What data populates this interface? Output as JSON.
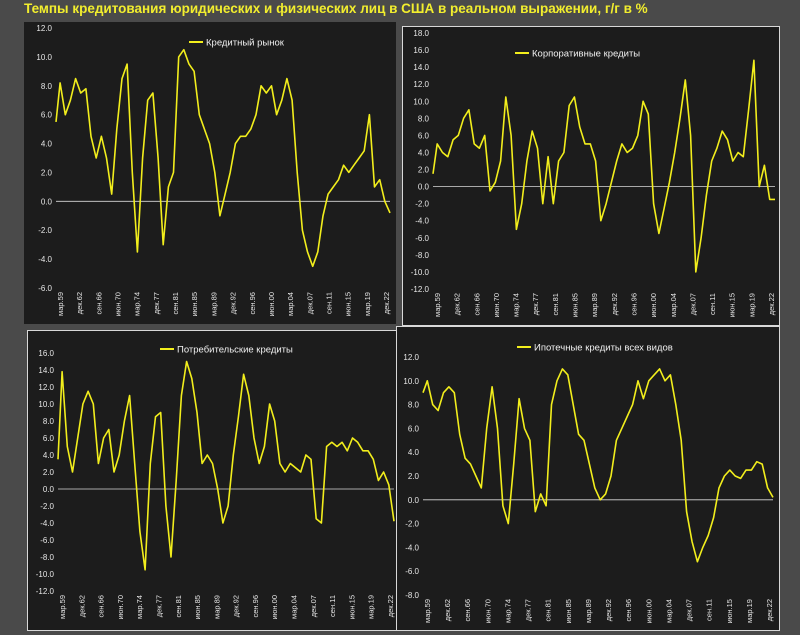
{
  "title": "Темпы кредитования юридических и физических лиц в США в реальном выражении, г/г в %",
  "colors": {
    "line": "#f2ee1c",
    "background": "#1c1c1c",
    "grid": "#555555",
    "text": "#e6e6e6"
  },
  "chart_data": [
    {
      "type": "line",
      "series": [
        {
          "name": "Кредитный рынок",
          "x": [
            1959.2,
            1960.0,
            1961.0,
            1962.0,
            1963.0,
            1964.0,
            1965.0,
            1966.0,
            1967.0,
            1968.0,
            1969.0,
            1970.0,
            1971.0,
            1972.0,
            1973.0,
            1974.0,
            1975.0,
            1976.0,
            1977.0,
            1978.0,
            1979.0,
            1980.0,
            1981.0,
            1982.0,
            1983.0,
            1984.0,
            1985.0,
            1986.0,
            1987.0,
            1988.0,
            1989.0,
            1990.0,
            1991.0,
            1992.0,
            1993.0,
            1994.0,
            1995.0,
            1996.0,
            1997.0,
            1998.0,
            1999.0,
            2000.0,
            2001.0,
            2002.0,
            2003.0,
            2004.0,
            2005.0,
            2006.0,
            2007.0,
            2008.0,
            2009.0,
            2010.0,
            2011.0,
            2012.0,
            2013.0,
            2014.0,
            2015.0,
            2016.0,
            2017.0,
            2018.0,
            2019.0,
            2020.0,
            2021.0,
            2022.0,
            2023.0,
            2024.0
          ],
          "values": [
            5.5,
            8.2,
            6.0,
            7.0,
            8.5,
            7.5,
            7.8,
            4.5,
            3.0,
            4.5,
            3.0,
            0.5,
            5.0,
            8.5,
            9.5,
            2.0,
            -3.5,
            3.0,
            7.0,
            7.5,
            3.0,
            -3.0,
            1.0,
            2.0,
            10.0,
            10.5,
            9.5,
            9.0,
            6.0,
            5.0,
            4.0,
            2.0,
            -1.0,
            0.5,
            2.0,
            4.0,
            4.5,
            4.5,
            5.0,
            6.0,
            8.0,
            7.5,
            8.0,
            6.0,
            7.0,
            8.5,
            7.0,
            2.0,
            -2.0,
            -3.5,
            -4.5,
            -3.5,
            -1.0,
            0.5,
            1.0,
            1.5,
            2.5,
            2.0,
            2.5,
            3.0,
            3.5,
            6.0,
            1.0,
            1.5,
            0.0,
            -0.8
          ]
        }
      ],
      "ylim": [
        -6,
        12
      ],
      "yticks": [
        "12.0",
        "10.0",
        "8.0",
        "6.0",
        "4.0",
        "2.0",
        "0.0",
        "-2.0",
        "-4.0",
        "-6.0"
      ],
      "xticks": [
        "мар.59",
        "дек.62",
        "сен.66",
        "июн.70",
        "мар.74",
        "дек.77",
        "сен.81",
        "июн.85",
        "мар.89",
        "дек.92",
        "сен.96",
        "июн.00",
        "мар.04",
        "дек.07",
        "сен.11",
        "июн.15",
        "мар.19",
        "дек.22"
      ],
      "legend": "top-center"
    },
    {
      "type": "line",
      "series": [
        {
          "name": "Корпоративные кредиты",
          "x": [
            1959.2,
            1960.0,
            1961.0,
            1962.0,
            1963.0,
            1964.0,
            1965.0,
            1966.0,
            1967.0,
            1968.0,
            1969.0,
            1970.0,
            1971.0,
            1972.0,
            1973.0,
            1974.0,
            1975.0,
            1976.0,
            1977.0,
            1978.0,
            1979.0,
            1980.0,
            1981.0,
            1982.0,
            1983.0,
            1984.0,
            1985.0,
            1986.0,
            1987.0,
            1988.0,
            1989.0,
            1990.0,
            1991.0,
            1992.0,
            1993.0,
            1994.0,
            1995.0,
            1996.0,
            1997.0,
            1998.0,
            1999.0,
            2000.0,
            2001.0,
            2002.0,
            2003.0,
            2004.0,
            2005.0,
            2006.0,
            2007.0,
            2008.0,
            2009.0,
            2010.0,
            2011.0,
            2012.0,
            2013.0,
            2014.0,
            2015.0,
            2016.0,
            2017.0,
            2018.0,
            2019.0,
            2020.0,
            2021.0,
            2022.0,
            2023.0,
            2024.0
          ],
          "values": [
            1.5,
            5.0,
            4.0,
            3.5,
            5.5,
            6.0,
            8.0,
            9.0,
            5.0,
            4.5,
            6.0,
            -0.5,
            0.5,
            3.0,
            10.5,
            6.0,
            -5.0,
            -2.0,
            3.0,
            6.5,
            4.5,
            -2.0,
            3.5,
            -2.0,
            3.0,
            4.0,
            9.5,
            10.5,
            7.0,
            5.0,
            5.0,
            3.0,
            -4.0,
            -2.0,
            0.5,
            3.0,
            5.0,
            4.0,
            4.5,
            6.0,
            10.0,
            8.5,
            -2.0,
            -5.5,
            -2.5,
            0.5,
            4.0,
            8.0,
            12.5,
            6.0,
            -10.0,
            -6.0,
            -1.0,
            3.0,
            4.5,
            6.5,
            5.5,
            3.0,
            4.0,
            3.5,
            9.0,
            14.8,
            0.0,
            2.5,
            -1.5,
            -1.5
          ]
        }
      ],
      "ylim": [
        -12,
        18
      ],
      "yticks": [
        "18.0",
        "16.0",
        "14.0",
        "12.0",
        "10.0",
        "8.0",
        "6.0",
        "4.0",
        "2.0",
        "0.0",
        "-2.0",
        "-4.0",
        "-6.0",
        "-8.0",
        "-10.0",
        "-12.0"
      ],
      "xticks": [
        "мар.59",
        "дек.62",
        "сен.66",
        "июн.70",
        "мар.74",
        "дек.77",
        "сен.81",
        "июн.85",
        "мар.89",
        "дек.92",
        "сен.96",
        "июн.00",
        "мар.04",
        "дек.07",
        "сен.11",
        "июн.15",
        "мар.19",
        "дек.22"
      ],
      "legend": "top-center"
    },
    {
      "type": "line",
      "series": [
        {
          "name": "Потребительские кредиты",
          "x": [
            1959.2,
            1960.0,
            1961.0,
            1962.0,
            1963.0,
            1964.0,
            1965.0,
            1966.0,
            1967.0,
            1968.0,
            1969.0,
            1970.0,
            1971.0,
            1972.0,
            1973.0,
            1974.0,
            1975.0,
            1976.0,
            1977.0,
            1978.0,
            1979.0,
            1980.0,
            1981.0,
            1982.0,
            1983.0,
            1984.0,
            1985.0,
            1986.0,
            1987.0,
            1988.0,
            1989.0,
            1990.0,
            1991.0,
            1992.0,
            1993.0,
            1994.0,
            1995.0,
            1996.0,
            1997.0,
            1998.0,
            1999.0,
            2000.0,
            2001.0,
            2002.0,
            2003.0,
            2004.0,
            2005.0,
            2006.0,
            2007.0,
            2008.0,
            2009.0,
            2010.0,
            2011.0,
            2012.0,
            2013.0,
            2014.0,
            2015.0,
            2016.0,
            2017.0,
            2018.0,
            2019.0,
            2020.0,
            2021.0,
            2022.0,
            2023.0,
            2024.0
          ],
          "values": [
            3.5,
            13.8,
            5.0,
            2.0,
            6.0,
            10.0,
            11.5,
            10.0,
            3.0,
            6.0,
            7.0,
            2.0,
            4.0,
            8.0,
            11.0,
            3.0,
            -5.0,
            -9.5,
            3.0,
            8.5,
            9.0,
            -2.0,
            -8.0,
            1.0,
            11.0,
            15.0,
            13.0,
            9.0,
            3.0,
            4.0,
            3.0,
            0.0,
            -4.0,
            -2.0,
            4.0,
            8.5,
            13.5,
            11.0,
            6.0,
            3.0,
            5.0,
            10.0,
            8.0,
            3.0,
            2.0,
            3.0,
            2.5,
            2.0,
            4.0,
            3.5,
            -3.5,
            -4.0,
            5.0,
            5.5,
            5.0,
            5.5,
            4.5,
            6.0,
            5.5,
            4.5,
            4.5,
            3.5,
            1.0,
            2.0,
            0.5,
            -3.8
          ]
        }
      ],
      "ylim": [
        -12,
        16
      ],
      "yticks": [
        "16.0",
        "14.0",
        "12.0",
        "10.0",
        "8.0",
        "6.0",
        "4.0",
        "2.0",
        "0.0",
        "-2.0",
        "-4.0",
        "-6.0",
        "-8.0",
        "-10.0",
        "-12.0"
      ],
      "xticks": [
        "мар.59",
        "дек.62",
        "сен.66",
        "июн.70",
        "мар.74",
        "дек.77",
        "сен.81",
        "июн.85",
        "мар.89",
        "дек.92",
        "сен.96",
        "июн.00",
        "мар.04",
        "дек.07",
        "сен.11",
        "июн.15",
        "мар.19",
        "дек.22"
      ],
      "legend": "top-center"
    },
    {
      "type": "line",
      "series": [
        {
          "name": "Ипотечные кредиты всех видов",
          "x": [
            1959.2,
            1960.0,
            1961.0,
            1962.0,
            1963.0,
            1964.0,
            1965.0,
            1966.0,
            1967.0,
            1968.0,
            1969.0,
            1970.0,
            1971.0,
            1972.0,
            1973.0,
            1974.0,
            1975.0,
            1976.0,
            1977.0,
            1978.0,
            1979.0,
            1980.0,
            1981.0,
            1982.0,
            1983.0,
            1984.0,
            1985.0,
            1986.0,
            1987.0,
            1988.0,
            1989.0,
            1990.0,
            1991.0,
            1992.0,
            1993.0,
            1994.0,
            1995.0,
            1996.0,
            1997.0,
            1998.0,
            1999.0,
            2000.0,
            2001.0,
            2002.0,
            2003.0,
            2004.0,
            2005.0,
            2006.0,
            2007.0,
            2008.0,
            2009.0,
            2010.0,
            2011.0,
            2012.0,
            2013.0,
            2014.0,
            2015.0,
            2016.0,
            2017.0,
            2018.0,
            2019.0,
            2020.0,
            2021.0,
            2022.0,
            2023.0,
            2024.0
          ],
          "values": [
            9.0,
            10.0,
            8.0,
            7.5,
            9.0,
            9.5,
            9.0,
            5.5,
            3.5,
            3.0,
            2.0,
            1.0,
            6.0,
            9.5,
            6.0,
            -0.5,
            -2.0,
            3.0,
            8.5,
            6.0,
            5.0,
            -1.0,
            0.5,
            -0.5,
            8.0,
            10.0,
            11.0,
            10.5,
            8.0,
            5.5,
            5.0,
            3.0,
            1.0,
            0.0,
            0.5,
            2.0,
            5.0,
            6.0,
            7.0,
            8.0,
            10.0,
            8.5,
            10.0,
            10.5,
            11.0,
            10.0,
            10.5,
            8.0,
            5.0,
            -1.0,
            -3.5,
            -5.2,
            -4.0,
            -3.0,
            -1.5,
            1.0,
            2.0,
            2.5,
            2.0,
            1.8,
            2.5,
            2.5,
            3.2,
            3.0,
            1.0,
            0.2
          ]
        }
      ],
      "ylim": [
        -8,
        12
      ],
      "yticks": [
        "12.0",
        "10.0",
        "8.0",
        "6.0",
        "4.0",
        "2.0",
        "0.0",
        "-2.0",
        "-4.0",
        "-6.0",
        "-8.0"
      ],
      "xticks": [
        "мар.59",
        "дек.62",
        "сен.66",
        "июн.70",
        "мар.74",
        "дек.77",
        "сен.81",
        "июн.85",
        "мар.89",
        "дек.92",
        "сен.96",
        "июн.00",
        "мар.04",
        "дек.07",
        "сен.11",
        "июн.15",
        "мар.19",
        "дек.22"
      ],
      "legend": "top-center"
    }
  ]
}
